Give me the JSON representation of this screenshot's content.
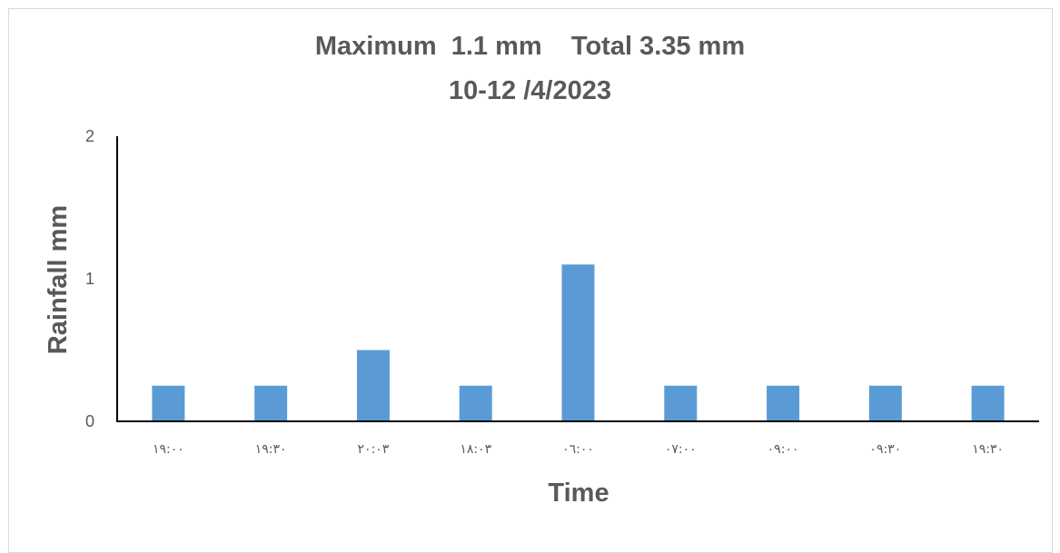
{
  "chart_data": {
    "type": "bar",
    "title": "Maximum  1.1 mm    Total 3.35 mm",
    "subtitle": "10-12 /4/2023",
    "xlabel": "Time",
    "ylabel": "Rainfall mm",
    "categories": [
      "١٩:٠٠",
      "١٩:٣٠",
      "٢٠:٠٣",
      "١٨:٠٣",
      "٠٦:٠٠",
      "٠٧:٠٠",
      "٠٩:٠٠",
      "٠٩:٣٠",
      "١٩:٣٠"
    ],
    "values": [
      0.25,
      0.25,
      0.5,
      0.25,
      1.1,
      0.25,
      0.25,
      0.25,
      0.25
    ],
    "ylim": [
      0,
      2
    ],
    "yticks": [
      "0",
      "1",
      "2"
    ],
    "grid": false,
    "legend": "none",
    "bar_color": "#5b9bd5",
    "axis_color": "#000000",
    "text_color": "#595959"
  }
}
